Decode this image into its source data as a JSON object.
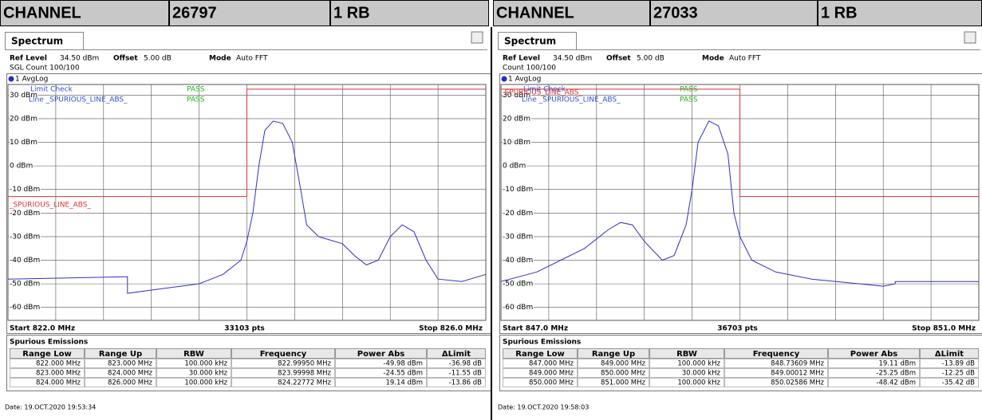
{
  "panels": [
    {
      "channel_label": "CHANNEL",
      "channel": "26797",
      "rb": "1 RB",
      "tab": "Spectrum",
      "ref_level_label": "Ref Level",
      "ref_level": "34.50 dBm",
      "offset_label": "Offset",
      "offset": "5.00 dB",
      "mode_label": "Mode",
      "mode": "Auto FFT",
      "count": "SGL Count 100/100",
      "trace_label": "1 AvgLog",
      "limit_check": "Limit Check",
      "limit_check_result": "PASS",
      "limit_line": "Line _SPURIOUS_LINE_ABS_",
      "limit_line_result": "PASS",
      "limit_label": "_SPURIOUS_LINE_ABS_",
      "xlim": [
        822,
        826
      ],
      "ylim": [
        -65.5,
        34.5
      ],
      "yticks": [
        {
          "value": 30,
          "label": "30 dBm"
        },
        {
          "value": 20,
          "label": "20 dBm"
        },
        {
          "value": 10,
          "label": "10 dBm"
        },
        {
          "value": 0,
          "label": "0 dBm"
        },
        {
          "value": -10,
          "label": "-10 dBm"
        },
        {
          "value": -20,
          "label": "-20 dBm"
        },
        {
          "value": -30,
          "label": "-30 dBm"
        },
        {
          "value": -40,
          "label": "-40 dBm"
        },
        {
          "value": -50,
          "label": "-50 dBm"
        },
        {
          "value": -60,
          "label": "-60 dBm"
        }
      ],
      "trace": {
        "x": [
          822.0,
          822.5,
          823.0,
          823.0,
          823.3,
          823.6,
          823.8,
          823.95,
          824.0,
          824.05,
          824.1,
          824.15,
          824.22,
          824.3,
          824.38,
          824.45,
          824.5,
          824.6,
          824.8,
          824.9,
          825.0,
          825.1,
          825.2,
          825.3,
          825.4,
          825.5,
          825.6,
          825.8,
          826.0
        ],
        "y": [
          -48,
          -47.5,
          -47,
          -54,
          -52,
          -50,
          -46,
          -40,
          -32,
          -20,
          0,
          15,
          19,
          18,
          10,
          -10,
          -25,
          -30,
          -33,
          -38,
          -42,
          -40,
          -30,
          -25,
          -28,
          -40,
          -48,
          -49,
          -46
        ]
      },
      "limit": {
        "x": [
          822,
          824,
          824,
          826
        ],
        "y": [
          -13,
          -13,
          32.5,
          32.5
        ]
      },
      "start": "Start 822.0 MHz",
      "pts": "33103 pts",
      "stop": "Stop 826.0 MHz",
      "table": {
        "title": "Spurious Emissions",
        "columns": [
          "Range Low",
          "Range Up",
          "RBW",
          "Frequency",
          "Power Abs",
          "ΔLimit"
        ],
        "rows": [
          [
            "822.000 MHz",
            "823.000 MHz",
            "100.000 kHz",
            "822.99950 MHz",
            "-49.98 dBm",
            "-36.98 dB"
          ],
          [
            "823.000 MHz",
            "824.000 MHz",
            "30.000 kHz",
            "823.99998 MHz",
            "-24.55 dBm",
            "-11.55 dB"
          ],
          [
            "824.000 MHz",
            "826.000 MHz",
            "100.000 kHz",
            "824.22772 MHz",
            "19.14 dBm",
            "-13.86 dB"
          ]
        ]
      },
      "date": "Date: 19.OCT.2020 19:53:34"
    },
    {
      "channel_label": "CHANNEL",
      "channel": "27033",
      "rb": "1 RB",
      "tab": "Spectrum",
      "ref_level_label": "Ref Level",
      "ref_level": "34.50 dBm",
      "offset_label": "Offset",
      "offset": "5.00 dB",
      "mode_label": "Mode",
      "mode": "Auto FFT",
      "count": "Count 100/100",
      "trace_label": "1 AvgLog",
      "limit_check": "Limit Check",
      "limit_check_result": "PASS",
      "limit_line": "Line _SPURIOUS_LINE_ABS_",
      "limit_line_result": "PASS",
      "limit_label": "_SPURIOUS_LINE_ABS_",
      "xlim": [
        847,
        851
      ],
      "ylim": [
        -65.5,
        34.5
      ],
      "yticks": [
        {
          "value": 30,
          "label": "30 dBm"
        },
        {
          "value": 20,
          "label": "20 dBm"
        },
        {
          "value": 10,
          "label": "10 dBm"
        },
        {
          "value": 0,
          "label": "0 dBm"
        },
        {
          "value": -10,
          "label": "-10 dBm"
        },
        {
          "value": -20,
          "label": "-20 dBm"
        },
        {
          "value": -30,
          "label": "-30 dBm"
        },
        {
          "value": -40,
          "label": "-40 dBm"
        },
        {
          "value": -50,
          "label": "-50 dBm"
        },
        {
          "value": -60,
          "label": "-60 dBm"
        }
      ],
      "trace": {
        "x": [
          847.0,
          847.3,
          847.5,
          847.7,
          847.9,
          848.0,
          848.1,
          848.2,
          848.35,
          848.45,
          848.55,
          848.6,
          848.65,
          848.74,
          848.82,
          848.9,
          848.95,
          849.0,
          849.1,
          849.3,
          849.6,
          850.0,
          850.2,
          850.3,
          850.3,
          850.6,
          851.0
        ],
        "y": [
          -49,
          -45,
          -40,
          -35,
          -27,
          -24,
          -25,
          -32,
          -40,
          -38,
          -25,
          -10,
          10,
          19,
          17,
          5,
          -20,
          -30,
          -40,
          -45,
          -48,
          -50,
          -51,
          -50,
          -49,
          -49,
          -49
        ]
      },
      "limit": {
        "x": [
          847,
          849,
          849,
          851
        ],
        "y": [
          32.5,
          32.5,
          -13,
          -13
        ]
      },
      "start": "Start 847.0 MHz",
      "pts": "36703 pts",
      "stop": "Stop 851.0 MHz",
      "table": {
        "title": "Spurious Emissions",
        "columns": [
          "Range Low",
          "Range Up",
          "RBW",
          "Frequency",
          "Power Abs",
          "ΔLimit"
        ],
        "rows": [
          [
            "847.000 MHz",
            "849.000 MHz",
            "100.000 kHz",
            "848.73609 MHz",
            "19.11 dBm",
            "-13.89 dB"
          ],
          [
            "849.000 MHz",
            "850.000 MHz",
            "30.000 kHz",
            "849.00012 MHz",
            "-25.25 dBm",
            "-12.25 dB"
          ],
          [
            "850.000 MHz",
            "851.000 MHz",
            "100.000 kHz",
            "850.02586 MHz",
            "-48.42 dBm",
            "-35.42 dB"
          ]
        ]
      },
      "date": "Date: 19.OCT.2020 19:58:03"
    }
  ]
}
